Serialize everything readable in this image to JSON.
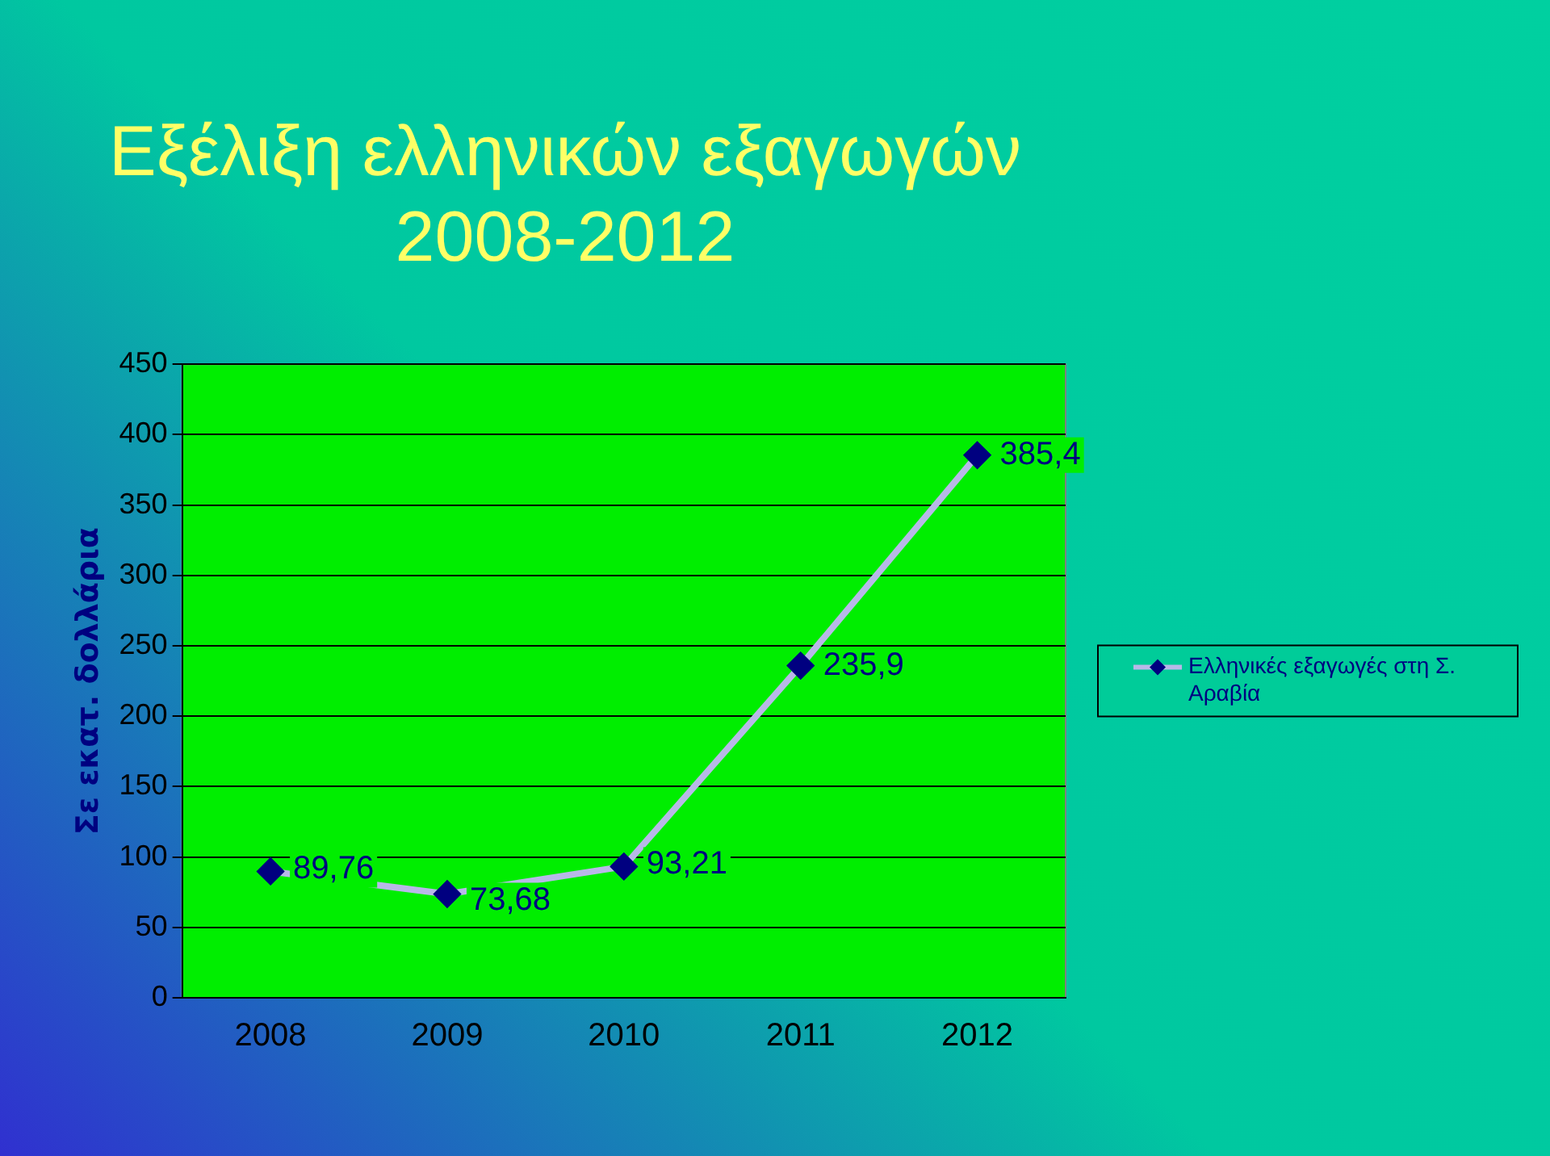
{
  "chart_data": {
    "type": "line",
    "title": [
      "Εξέλιξη ελληνικών εξαγωγών",
      "2008-2012"
    ],
    "ylabel": "Σε εκατ. δολλάρια",
    "categories": [
      "2008",
      "2009",
      "2010",
      "2011",
      "2012"
    ],
    "series": [
      {
        "name": "Ελληνικές εξαγωγές στη Σ. Αραβία",
        "color": "#b8b8e8",
        "values": [
          89.76,
          73.68,
          93.21,
          235.9,
          385.4
        ],
        "value_labels": [
          "89,76",
          "73,68",
          "93,21",
          "235,9",
          "385,4"
        ]
      }
    ],
    "ylim": [
      0,
      450
    ],
    "yticks": [
      0,
      50,
      100,
      150,
      200,
      250,
      300,
      350,
      400,
      450
    ],
    "grid": "y",
    "legend": "right",
    "marker": "diamond",
    "line_style": "solid"
  }
}
